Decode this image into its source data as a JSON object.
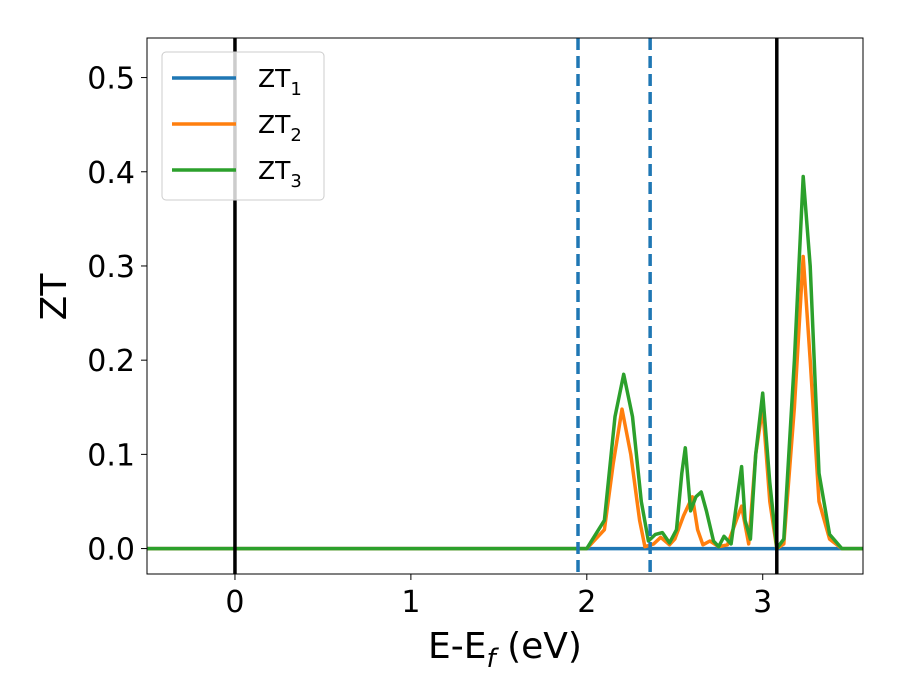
{
  "chart_data": {
    "type": "line",
    "xlabel": "E-E",
    "xlabel_sub": "f",
    "xlabel_unit": " (eV)",
    "ylabel": "ZT",
    "xlim": [
      -0.5,
      3.57
    ],
    "ylim": [
      -0.027,
      0.542
    ],
    "x_ticks": [
      0,
      1,
      2,
      3
    ],
    "x_tick_labels": [
      "0",
      "1",
      "2",
      "3"
    ],
    "y_ticks": [
      0.0,
      0.1,
      0.2,
      0.3,
      0.4,
      0.5
    ],
    "y_tick_labels": [
      "0.0",
      "0.1",
      "0.2",
      "0.3",
      "0.4",
      "0.5"
    ],
    "grid": false,
    "legend_position": "top-left",
    "series": [
      {
        "name": "ZT",
        "sub": "1",
        "color": "#1f77b4",
        "points": [
          [
            -0.5,
            0
          ],
          [
            3.57,
            0
          ]
        ]
      },
      {
        "name": "ZT",
        "sub": "2",
        "color": "#ff7f0e",
        "points": [
          [
            -0.5,
            0
          ],
          [
            2.0,
            0
          ],
          [
            2.1,
            0.02
          ],
          [
            2.15,
            0.09
          ],
          [
            2.2,
            0.148
          ],
          [
            2.25,
            0.1
          ],
          [
            2.3,
            0.03
          ],
          [
            2.33,
            0.002
          ],
          [
            2.38,
            0.005
          ],
          [
            2.42,
            0.012
          ],
          [
            2.47,
            0.004
          ],
          [
            2.5,
            0.01
          ],
          [
            2.55,
            0.035
          ],
          [
            2.6,
            0.055
          ],
          [
            2.63,
            0.02
          ],
          [
            2.66,
            0.004
          ],
          [
            2.7,
            0.008
          ],
          [
            2.75,
            0.002
          ],
          [
            2.8,
            0.004
          ],
          [
            2.85,
            0.03
          ],
          [
            2.88,
            0.045
          ],
          [
            2.92,
            0.005
          ],
          [
            2.96,
            0.1
          ],
          [
            3.0,
            0.15
          ],
          [
            3.04,
            0.05
          ],
          [
            3.08,
            0
          ],
          [
            3.12,
            0.005
          ],
          [
            3.18,
            0.15
          ],
          [
            3.23,
            0.31
          ],
          [
            3.27,
            0.2
          ],
          [
            3.32,
            0.05
          ],
          [
            3.38,
            0.01
          ],
          [
            3.45,
            0
          ],
          [
            3.57,
            0
          ]
        ]
      },
      {
        "name": "ZT",
        "sub": "3",
        "color": "#2ca02c",
        "points": [
          [
            -0.5,
            0
          ],
          [
            2.0,
            0
          ],
          [
            2.1,
            0.03
          ],
          [
            2.16,
            0.14
          ],
          [
            2.21,
            0.185
          ],
          [
            2.26,
            0.14
          ],
          [
            2.31,
            0.05
          ],
          [
            2.35,
            0.008
          ],
          [
            2.39,
            0.015
          ],
          [
            2.43,
            0.017
          ],
          [
            2.47,
            0.006
          ],
          [
            2.51,
            0.02
          ],
          [
            2.54,
            0.08
          ],
          [
            2.56,
            0.107
          ],
          [
            2.59,
            0.04
          ],
          [
            2.62,
            0.055
          ],
          [
            2.65,
            0.06
          ],
          [
            2.68,
            0.04
          ],
          [
            2.72,
            0.008
          ],
          [
            2.75,
            0.002
          ],
          [
            2.78,
            0.013
          ],
          [
            2.82,
            0.005
          ],
          [
            2.86,
            0.06
          ],
          [
            2.88,
            0.087
          ],
          [
            2.9,
            0.03
          ],
          [
            2.93,
            0.01
          ],
          [
            2.96,
            0.1
          ],
          [
            3.0,
            0.165
          ],
          [
            3.04,
            0.07
          ],
          [
            3.08,
            0
          ],
          [
            3.12,
            0.01
          ],
          [
            3.18,
            0.2
          ],
          [
            3.23,
            0.395
          ],
          [
            3.27,
            0.3
          ],
          [
            3.32,
            0.08
          ],
          [
            3.38,
            0.015
          ],
          [
            3.45,
            0
          ],
          [
            3.57,
            0
          ]
        ]
      }
    ],
    "reference_lines": [
      {
        "x": 0,
        "style": "solid",
        "color": "#000000"
      },
      {
        "x": 3.08,
        "style": "solid",
        "color": "#000000"
      },
      {
        "x": 1.95,
        "style": "dashed",
        "color": "#1f77b4"
      },
      {
        "x": 2.36,
        "style": "dashed",
        "color": "#1f77b4"
      }
    ]
  }
}
